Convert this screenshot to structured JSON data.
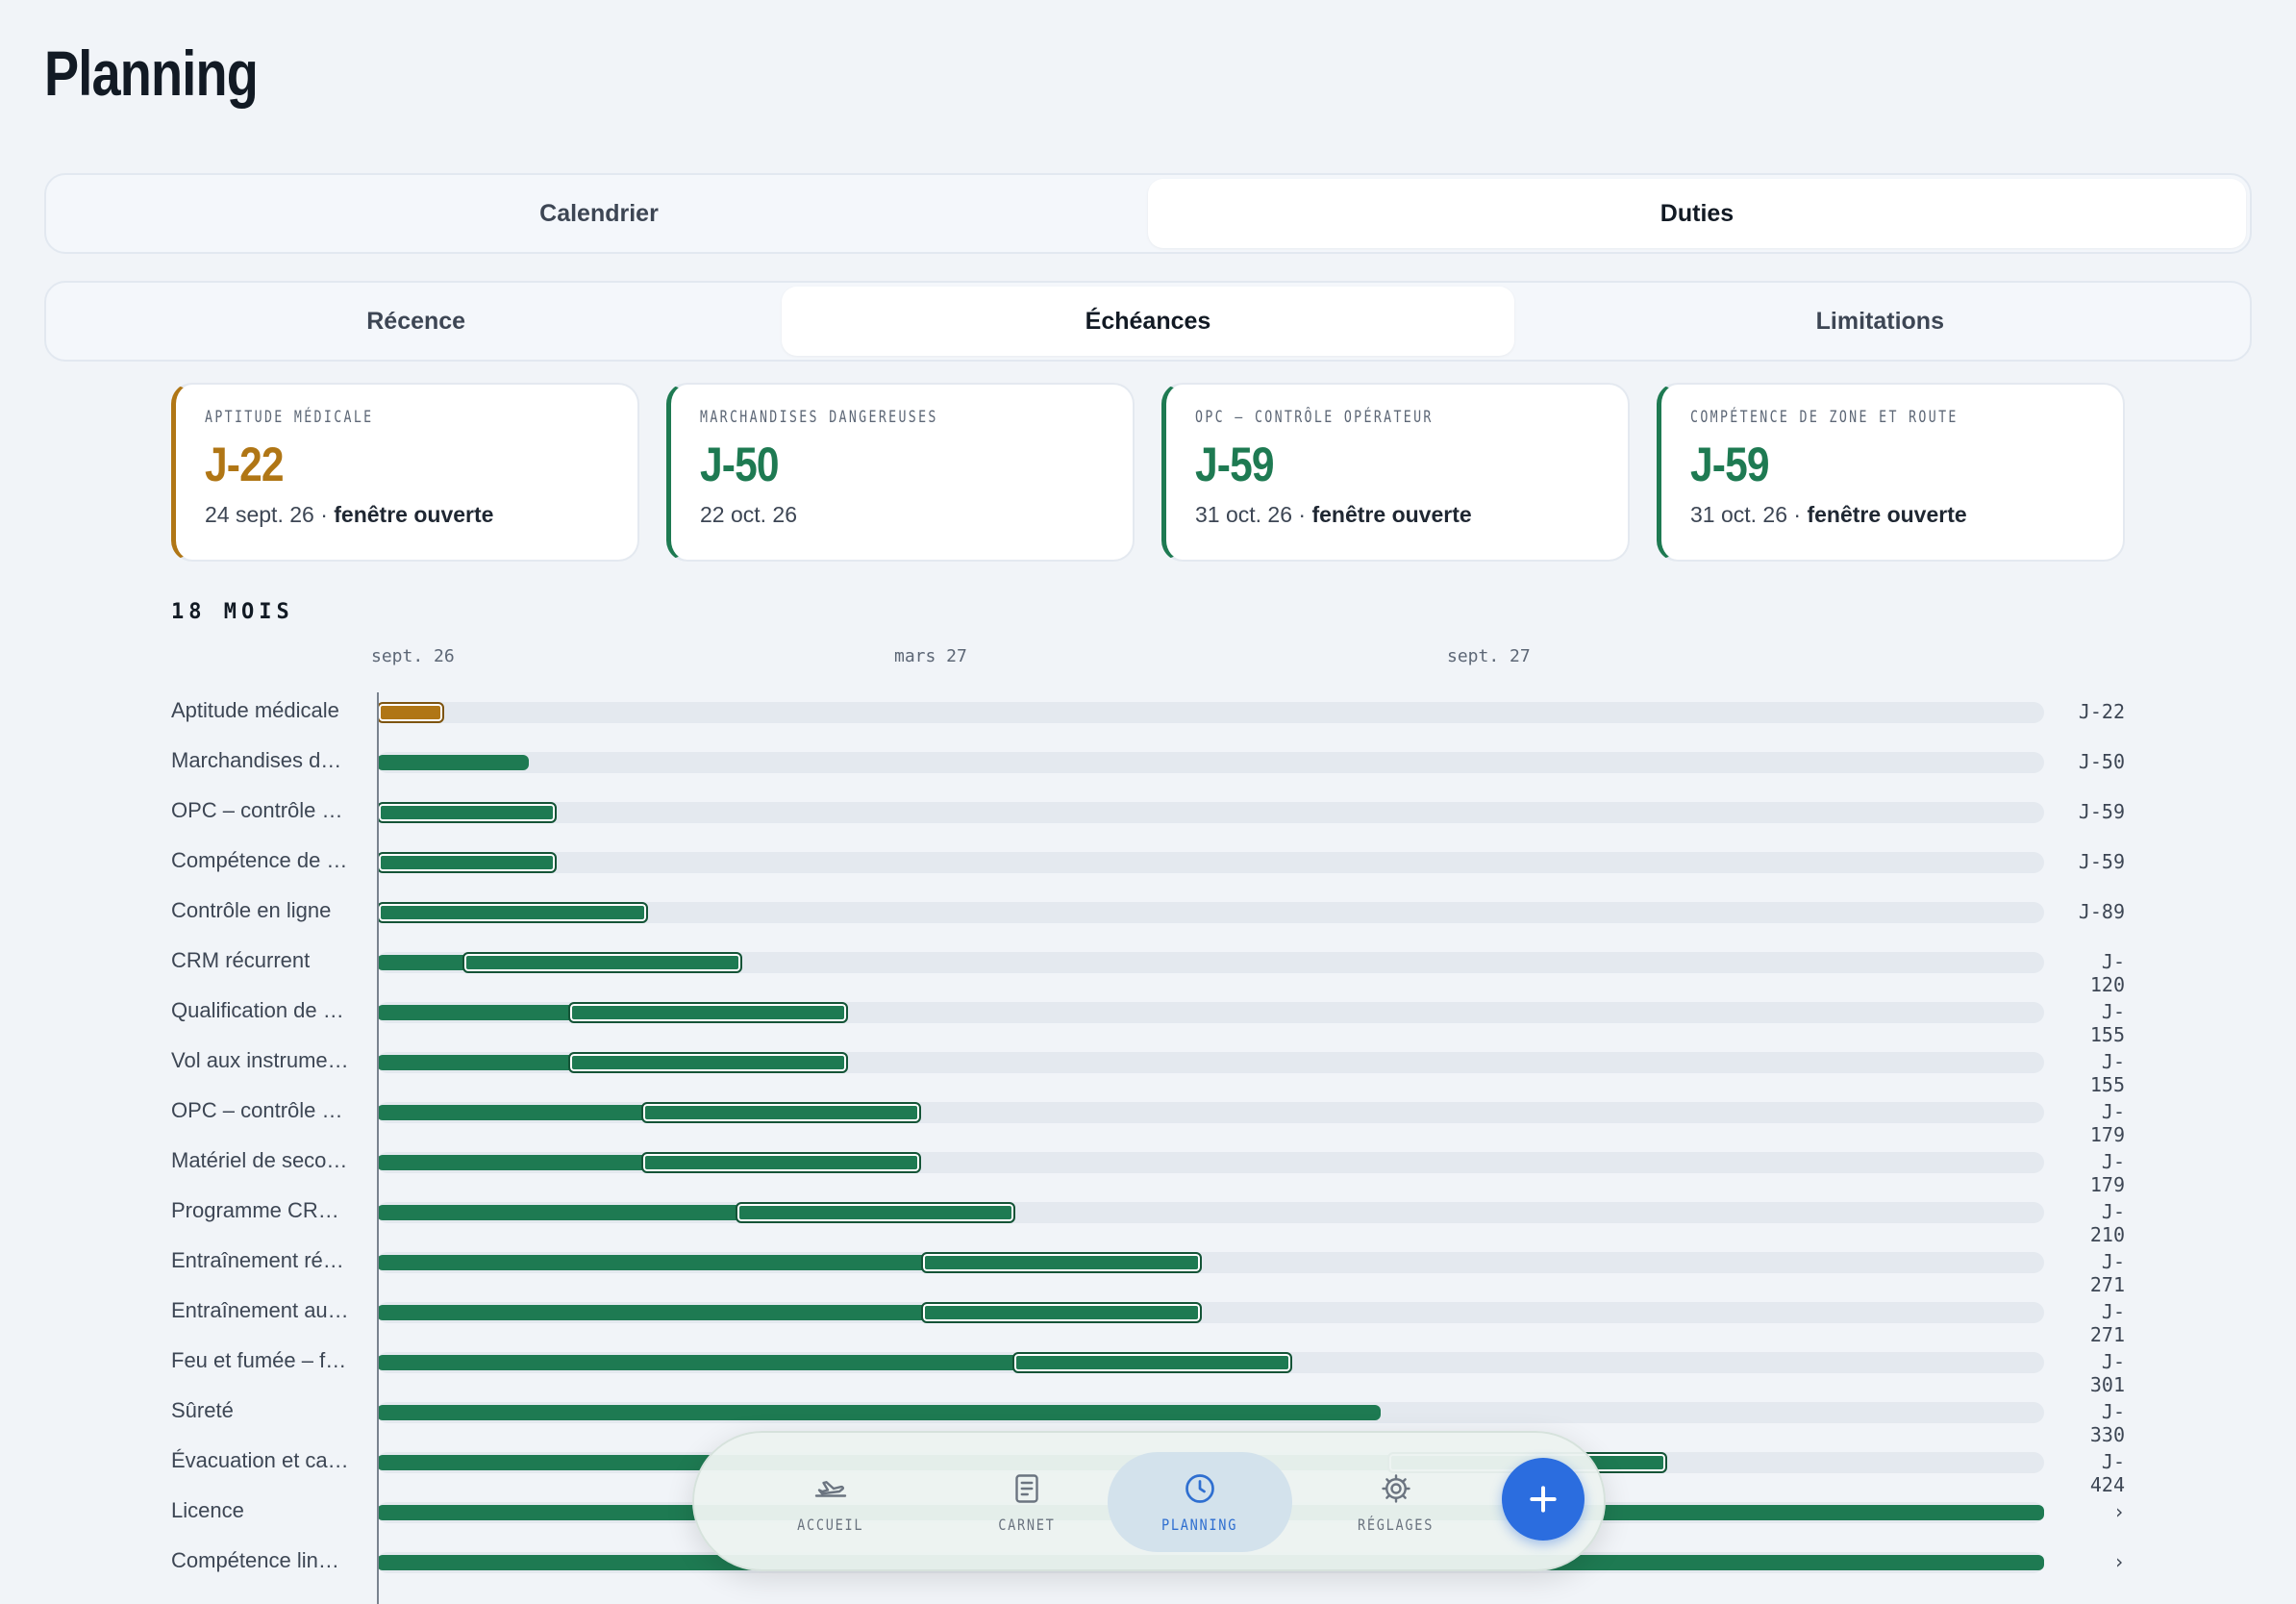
{
  "page": {
    "title": "Planning"
  },
  "top_tabs": {
    "calendar": "Calendrier",
    "duties": "Duties",
    "selected": "Duties"
  },
  "sub_tabs": {
    "recency": "Récence",
    "deadlines": "Échéances",
    "limits": "Limitations",
    "selected": "Échéances"
  },
  "cards": [
    {
      "label": "APTITUDE MÉDICALE",
      "value": "J-22",
      "date": "24 sept. 26",
      "sep": " · ",
      "status": "fenêtre ouverte",
      "color": "#b07615"
    },
    {
      "label": "MARCHANDISES DANGEREUSES",
      "value": "J-50",
      "date": "22 oct. 26",
      "sep": "",
      "status": "",
      "color": "#1e7a52"
    },
    {
      "label": "OPC – CONTRÔLE OPÉRATEUR",
      "value": "J-59",
      "date": "31 oct. 26",
      "sep": " · ",
      "status": "fenêtre ouverte",
      "color": "#1e7a52"
    },
    {
      "label": "COMPÉTENCE DE ZONE ET ROUTE",
      "value": "J-59",
      "date": "31 oct. 26",
      "sep": " · ",
      "status": "fenêtre ouverte",
      "color": "#1e7a52"
    }
  ],
  "timeline": {
    "title": "18 MOIS",
    "axis": [
      "sept. 26",
      "mars 27",
      "sept. 27"
    ],
    "rows": [
      {
        "label": "Aptitude médicale",
        "value": "J-22",
        "days": 22,
        "window_days": 22,
        "color": "#b07615"
      },
      {
        "label": "Marchandises d…",
        "value": "J-50",
        "days": 50,
        "window_days": 0,
        "color": "#1e7a52"
      },
      {
        "label": "OPC – contrôle …",
        "value": "J-59",
        "days": 59,
        "window_days": 59,
        "color": "#1e7a52"
      },
      {
        "label": "Compétence de …",
        "value": "J-59",
        "days": 59,
        "window_days": 59,
        "color": "#1e7a52"
      },
      {
        "label": "Contrôle en ligne",
        "value": "J-89",
        "days": 89,
        "window_days": 89,
        "color": "#1e7a52"
      },
      {
        "label": "CRM récurrent",
        "value": "J-120",
        "days": 120,
        "window_days": 92,
        "color": "#1e7a52"
      },
      {
        "label": "Qualification de …",
        "value": "J-155",
        "days": 155,
        "window_days": 92,
        "color": "#1e7a52"
      },
      {
        "label": "Vol aux instrume…",
        "value": "J-155",
        "days": 155,
        "window_days": 92,
        "color": "#1e7a52"
      },
      {
        "label": "OPC – contrôle …",
        "value": "J-179",
        "days": 179,
        "window_days": 92,
        "color": "#1e7a52"
      },
      {
        "label": "Matériel de seco…",
        "value": "J-179",
        "days": 179,
        "window_days": 92,
        "color": "#1e7a52"
      },
      {
        "label": "Programme CR…",
        "value": "J-210",
        "days": 210,
        "window_days": 92,
        "color": "#1e7a52"
      },
      {
        "label": "Entraînement ré…",
        "value": "J-271",
        "days": 271,
        "window_days": 92,
        "color": "#1e7a52"
      },
      {
        "label": "Entraînement au…",
        "value": "J-271",
        "days": 271,
        "window_days": 92,
        "color": "#1e7a52"
      },
      {
        "label": "Feu et fumée – f…",
        "value": "J-301",
        "days": 301,
        "window_days": 92,
        "color": "#1e7a52"
      },
      {
        "label": "Sûreté",
        "value": "J-330",
        "days": 330,
        "window_days": 0,
        "color": "#1e7a52"
      },
      {
        "label": "Évacuation et ca…",
        "value": "J-424",
        "days": 424,
        "window_days": 92,
        "color": "#1e7a52"
      },
      {
        "label": "Licence",
        "value": "›",
        "days": 548,
        "window_days": 0,
        "color": "#1e7a52"
      },
      {
        "label": "Compétence lin…",
        "value": "›",
        "days": 548,
        "window_days": 0,
        "color": "#1e7a52"
      }
    ]
  },
  "nav": {
    "items": [
      {
        "label": "ACCUEIL",
        "icon": "plane-icon"
      },
      {
        "label": "CARNET",
        "icon": "notebook-icon"
      },
      {
        "label": "PLANNING",
        "icon": "clock-icon"
      },
      {
        "label": "RÉGLAGES",
        "icon": "gear-icon"
      }
    ],
    "selected": "PLANNING",
    "add_icon": "plus-icon"
  }
}
